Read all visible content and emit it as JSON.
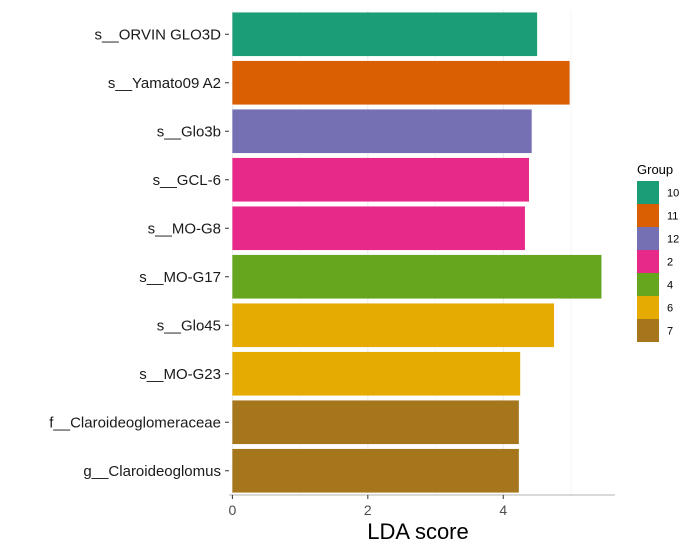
{
  "chart_data": {
    "type": "bar",
    "orientation": "horizontal",
    "categories": [
      "s__ORVIN GLO3D",
      "s__Yamato09 A2",
      "s__Glo3b",
      "s__GCL-6",
      "s__MO-G8",
      "s__MO-G17",
      "s__Glo45",
      "s__MO-G23",
      "f__Claroideoglomeraceae",
      "g__Claroideoglomus"
    ],
    "values": [
      4.5,
      4.98,
      4.42,
      4.38,
      4.32,
      5.45,
      4.75,
      4.25,
      4.23,
      4.23
    ],
    "groups": [
      "10",
      "11",
      "12",
      "2",
      "2",
      "4",
      "6",
      "6",
      "7",
      "7"
    ],
    "xlabel": "LDA score",
    "ylabel": "",
    "xlim": [
      -0.05,
      5.65
    ],
    "xticks": [
      0,
      2,
      4
    ],
    "grid": true,
    "legend": {
      "title": "Group",
      "position": "right",
      "entries": [
        {
          "label": "10",
          "color": "#1b9e77"
        },
        {
          "label": "11",
          "color": "#d95f02"
        },
        {
          "label": "12",
          "color": "#7570b3"
        },
        {
          "label": "2",
          "color": "#e7298a"
        },
        {
          "label": "4",
          "color": "#66a61e"
        },
        {
          "label": "6",
          "color": "#e6ab02"
        },
        {
          "label": "7",
          "color": "#a6761d"
        }
      ]
    }
  }
}
